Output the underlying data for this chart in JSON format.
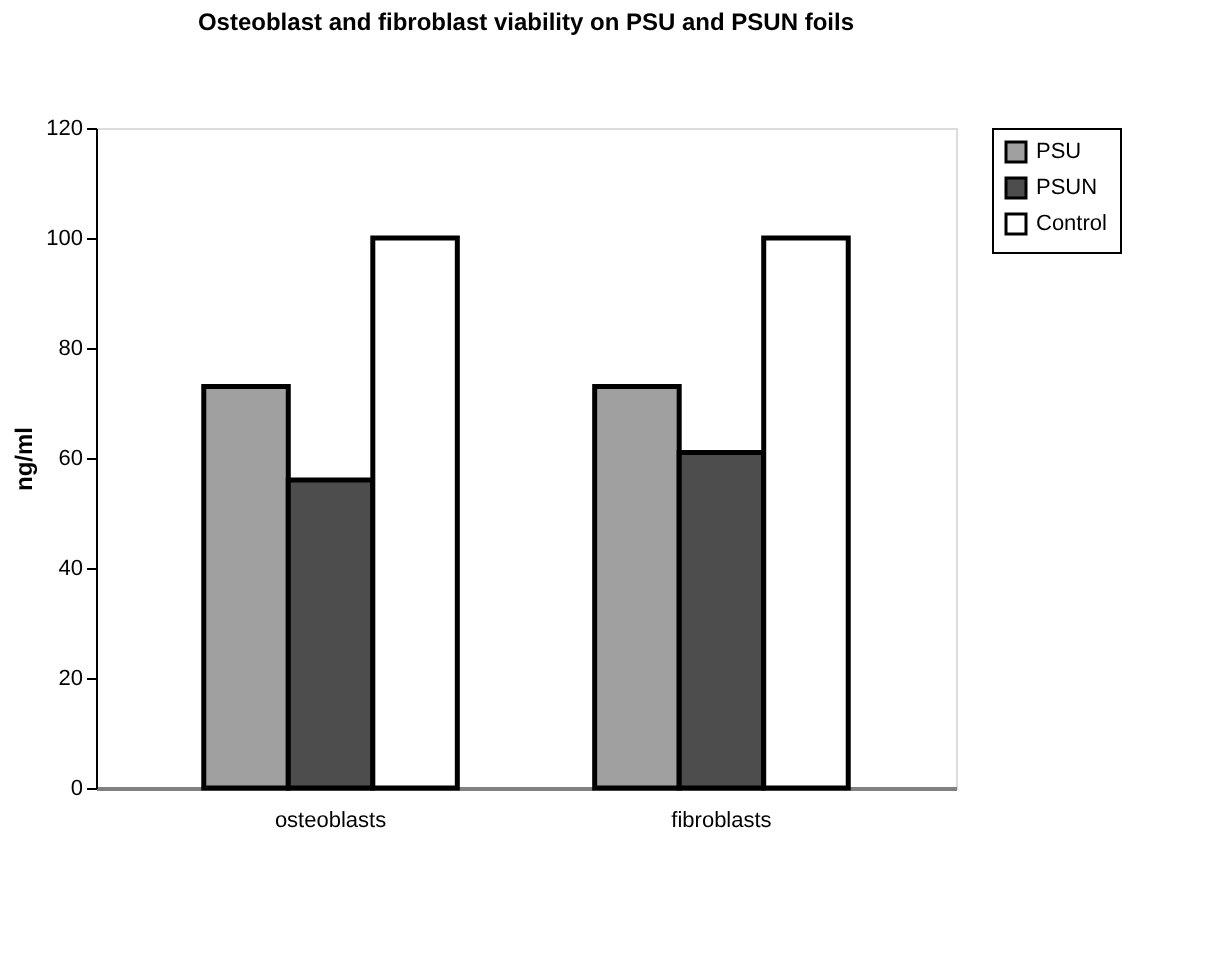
{
  "chart_data": {
    "type": "bar",
    "title": "Osteoblast and fibroblast viability on PSU and PSUN foils",
    "ylabel": "ng/ml",
    "categories": [
      "osteoblasts",
      "fibroblasts"
    ],
    "series": [
      {
        "name": "PSU",
        "color": "#a0a0a0",
        "values": [
          73,
          73
        ]
      },
      {
        "name": "PSUN",
        "color": "#4d4d4d",
        "values": [
          56,
          61
        ]
      },
      {
        "name": "Control",
        "color": "#ffffff",
        "values": [
          100,
          100
        ]
      }
    ],
    "ylim": [
      0,
      120
    ],
    "yticks": [
      0,
      20,
      40,
      60,
      80,
      100,
      120
    ],
    "grid": false,
    "legend": "right"
  }
}
